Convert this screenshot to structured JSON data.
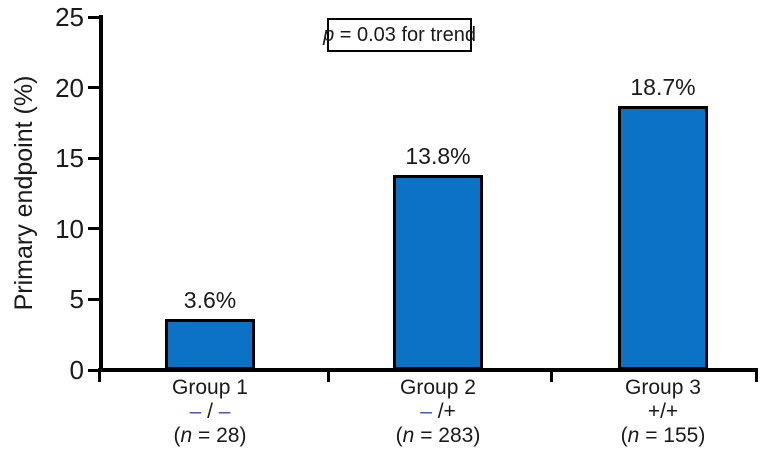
{
  "chart_data": {
    "type": "bar",
    "title": "",
    "ylabel": "Primary endpoint (%)",
    "xlabel": "",
    "ylim": [
      0,
      25
    ],
    "yticks": [
      0,
      5,
      10,
      15,
      20,
      25
    ],
    "grid": false,
    "legend": "none",
    "categories": [
      "Group 1",
      "Group 2",
      "Group 3"
    ],
    "values": [
      3.6,
      13.8,
      18.7
    ],
    "annotation": {
      "italic": "p",
      "rest": " = 0.03 for trend"
    },
    "bar_color": "#0b72c6",
    "bar_border_color": "#000000",
    "axis_color": "#000000",
    "genotype_dash_color": "#3f51a8",
    "groups": [
      {
        "label": "Group 1",
        "value_label": "3.6%",
        "genotype": [
          {
            "text": "– ",
            "dash": true
          },
          {
            "text": "/ ",
            "dash": false
          },
          {
            "text": "–",
            "dash": true
          }
        ],
        "n_label": {
          "pre": "(",
          "italic": "n",
          "post": " = 28)"
        }
      },
      {
        "label": "Group 2",
        "value_label": "13.8%",
        "genotype": [
          {
            "text": "– ",
            "dash": true
          },
          {
            "text": "/+",
            "dash": false
          }
        ],
        "n_label": {
          "pre": "(",
          "italic": "n",
          "post": " = 283)"
        }
      },
      {
        "label": "Group 3",
        "value_label": "18.7%",
        "genotype": [
          {
            "text": "+/+",
            "dash": false
          }
        ],
        "n_label": {
          "pre": "(",
          "italic": "n",
          "post": " = 155)"
        }
      }
    ]
  }
}
